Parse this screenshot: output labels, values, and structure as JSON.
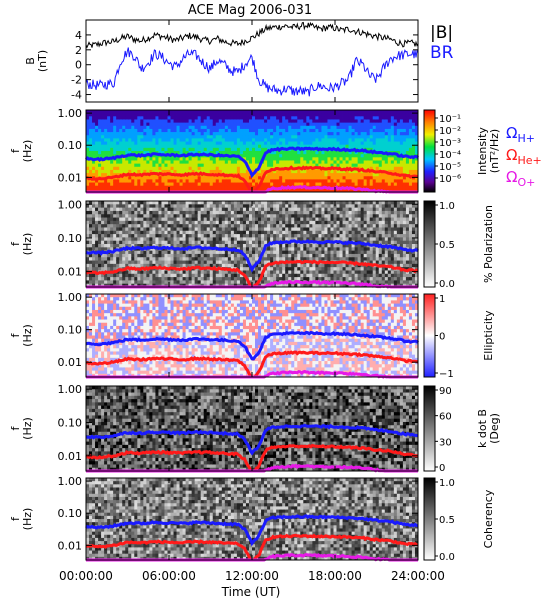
{
  "chart_data": {
    "type": "multi-panel",
    "title": "ACE Mag 2006-031",
    "x_axis": {
      "label": "Time (UT)",
      "range_hours": [
        0,
        24
      ],
      "ticks": [
        "00:00:00",
        "06:00:00",
        "12:00:00",
        "18:00:00",
        "24:00:00"
      ],
      "tick_hours": [
        0,
        6,
        12,
        18,
        24
      ]
    },
    "panels": [
      {
        "id": "field",
        "type": "line",
        "ylabel": "B\n(nT)",
        "ylim": [
          -5,
          6
        ],
        "yticks": [
          "4",
          "2",
          "0",
          "-2",
          "-4"
        ],
        "ytick_values": [
          4,
          2,
          0,
          -2,
          -4
        ],
        "legend": [
          {
            "label": "|B|",
            "color": "#000000"
          },
          {
            "label": "B_R",
            "color": "#1a1aff"
          }
        ],
        "series": [
          {
            "name": "|B|",
            "color": "#000000",
            "x": [
              0,
              0.5,
              1,
              1.5,
              2,
              2.5,
              3,
              3.5,
              4,
              4.5,
              5,
              5.5,
              6,
              6.5,
              7,
              7.5,
              8,
              8.5,
              9,
              9.5,
              10,
              10.5,
              11,
              11.5,
              12,
              12.5,
              13,
              13.5,
              14,
              14.5,
              15,
              15.5,
              16,
              16.5,
              17,
              17.5,
              18,
              18.5,
              19,
              19.5,
              20,
              20.5,
              21,
              21.5,
              22,
              22.5,
              23,
              23.5,
              24
            ],
            "values": [
              2.5,
              2.6,
              2.8,
              3.0,
              3.1,
              3.5,
              3.8,
              3.4,
              3.2,
              3.6,
              4.0,
              3.8,
              3.5,
              3.3,
              3.6,
              3.9,
              3.7,
              3.3,
              3.2,
              3.5,
              3.1,
              2.9,
              2.8,
              3.2,
              3.6,
              4.2,
              4.8,
              5.0,
              5.1,
              5.2,
              5.0,
              5.2,
              5.3,
              5.0,
              4.8,
              5.0,
              4.9,
              4.6,
              4.8,
              4.5,
              4.3,
              4.0,
              3.8,
              3.6,
              3.4,
              3.0,
              2.8,
              2.9,
              2.7
            ]
          },
          {
            "name": "B_R",
            "color": "#1a1aff",
            "x": [
              0,
              0.5,
              1,
              1.5,
              2,
              2.5,
              3,
              3.5,
              4,
              4.5,
              5,
              5.5,
              6,
              6.5,
              7,
              7.5,
              8,
              8.5,
              9,
              9.5,
              10,
              10.5,
              11,
              11.5,
              12,
              12.5,
              13,
              13.5,
              14,
              14.5,
              15,
              15.5,
              16,
              16.5,
              17,
              17.5,
              18,
              18.5,
              19,
              19.5,
              20,
              20.5,
              21,
              21.5,
              22,
              22.5,
              23,
              23.5,
              24
            ],
            "values": [
              -2.5,
              -2.7,
              -2.8,
              -2.6,
              -2.5,
              0.5,
              1.8,
              1.2,
              -0.5,
              0.3,
              1.5,
              1.0,
              0.2,
              -0.3,
              0.8,
              1.5,
              1.2,
              0.2,
              -0.5,
              0.6,
              0.0,
              -0.8,
              -1.0,
              0.2,
              1.0,
              -2.0,
              -3.0,
              -3.3,
              -3.5,
              -3.2,
              -3.6,
              -3.5,
              -3.8,
              -3.0,
              -2.8,
              -3.2,
              -3.0,
              -2.5,
              -2.0,
              0.5,
              0.0,
              -1.5,
              -2.0,
              -0.5,
              0.8,
              1.2,
              1.3,
              1.5,
              1.3
            ]
          }
        ]
      },
      {
        "id": "intensity",
        "type": "heatmap",
        "ylabel": "f\n(Hz)",
        "yticks": [
          "1.00",
          "0.10",
          "0.01"
        ],
        "colorbar": {
          "label": "Intensity\n(nT²/Hz)",
          "ticks": [
            "10⁻¹",
            "10⁻²",
            "10⁻³",
            "10⁻⁴",
            "10⁻⁵",
            "10⁻⁶"
          ]
        },
        "legend": [
          {
            "label": "ΩH+",
            "color": "#1a1aff"
          },
          {
            "label": "ΩHe+",
            "color": "#ff1a1a"
          },
          {
            "label": "ΩO+",
            "color": "#e619e6"
          }
        ]
      },
      {
        "id": "polarization",
        "type": "heatmap",
        "ylabel": "f\n(Hz)",
        "yticks": [
          "1.00",
          "0.10",
          "0.01"
        ],
        "colorbar": {
          "label": "% Polarization",
          "ticks": [
            "1.0",
            "0.5",
            "0.0"
          ]
        }
      },
      {
        "id": "ellipticity",
        "type": "heatmap",
        "ylabel": "f\n(Hz)",
        "yticks": [
          "1.00",
          "0.10",
          "0.01"
        ],
        "colorbar": {
          "label": "Ellipticity",
          "ticks": [
            "1",
            "0",
            "−1"
          ]
        }
      },
      {
        "id": "kdotb",
        "type": "heatmap",
        "ylabel": "f\n(Hz)",
        "yticks": [
          "1.00",
          "0.10",
          "0.01"
        ],
        "colorbar": {
          "label": "k dot B\n(Deg)",
          "ticks": [
            "90",
            "60",
            "30",
            "0"
          ]
        }
      },
      {
        "id": "coherency",
        "type": "heatmap",
        "ylabel": "f\n(Hz)",
        "yticks": [
          "1.00",
          "0.10",
          "0.01"
        ],
        "colorbar": {
          "label": "Coherency",
          "ticks": [
            "1.0",
            "0.5",
            "0.0"
          ]
        }
      }
    ],
    "gyrofrequency_curves": {
      "x": [
        0,
        1,
        2,
        3,
        4,
        5,
        6,
        7,
        8,
        9,
        10,
        11,
        11.5,
        12,
        12.5,
        13,
        13.5,
        14,
        15,
        16,
        17,
        18,
        19,
        20,
        21,
        22,
        23,
        24
      ],
      "series": [
        {
          "name": "ΩH+",
          "color": "#1a1aff",
          "values": [
            0.038,
            0.036,
            0.04,
            0.05,
            0.048,
            0.052,
            0.05,
            0.048,
            0.052,
            0.05,
            0.047,
            0.045,
            0.03,
            0.012,
            0.02,
            0.06,
            0.072,
            0.075,
            0.078,
            0.078,
            0.076,
            0.075,
            0.072,
            0.068,
            0.06,
            0.055,
            0.045,
            0.042
          ]
        },
        {
          "name": "ΩHe+",
          "color": "#ff1a1a",
          "values": [
            0.0095,
            0.009,
            0.01,
            0.0125,
            0.012,
            0.013,
            0.0125,
            0.012,
            0.013,
            0.0125,
            0.0118,
            0.0112,
            0.0075,
            0.003,
            0.005,
            0.015,
            0.018,
            0.0188,
            0.0195,
            0.0195,
            0.019,
            0.0188,
            0.018,
            0.017,
            0.015,
            0.0138,
            0.0112,
            0.0105
          ]
        },
        {
          "name": "ΩO+",
          "color": "#e619e6",
          "values": [
            0.0024,
            0.00225,
            0.0025,
            0.0031,
            0.003,
            0.00325,
            0.0031,
            0.003,
            0.00325,
            0.0031,
            0.00295,
            0.0028,
            0.0019,
            0.00075,
            0.00125,
            0.00375,
            0.0045,
            0.0047,
            0.0049,
            0.0049,
            0.00475,
            0.0047,
            0.0045,
            0.00425,
            0.00375,
            0.00345,
            0.0028,
            0.0026
          ]
        }
      ]
    }
  }
}
